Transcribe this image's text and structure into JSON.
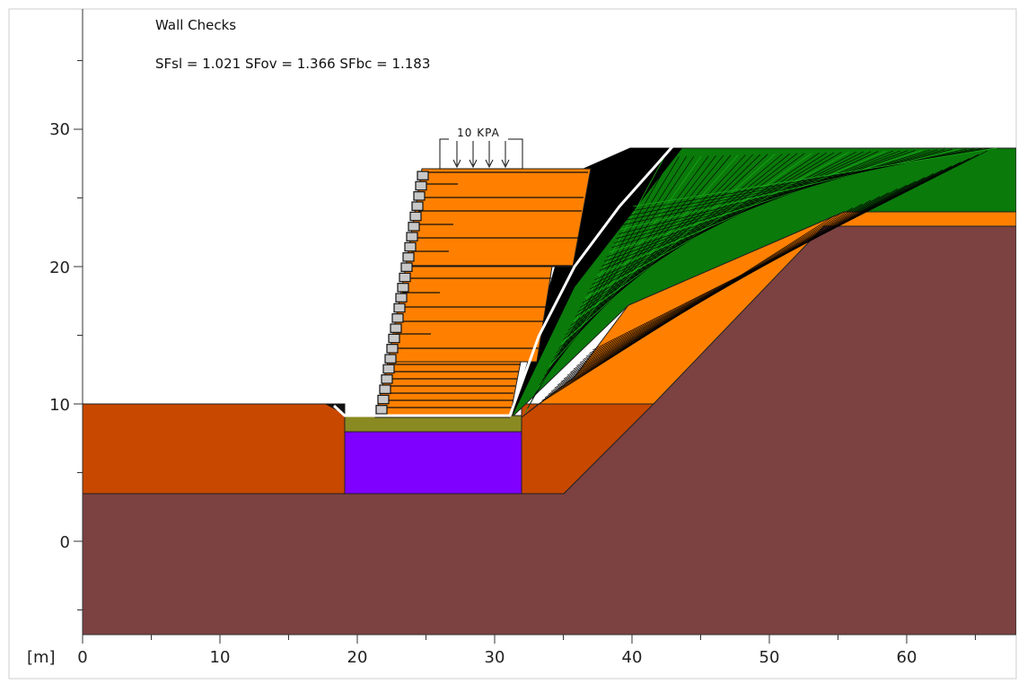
{
  "title": "Wall Checks",
  "safety_factors": "SFsl = 1.021 SFov = 1.366 SFbc = 1.183",
  "load_label": "10 KPA",
  "axis": {
    "unit_label": "[m]",
    "x_ticks": [
      "0",
      "10",
      "20",
      "30",
      "40",
      "50",
      "60"
    ],
    "y_ticks": [
      "30",
      "20",
      "10",
      "0"
    ]
  },
  "colors": {
    "bedrock": "#7c4141",
    "foundation_soil": "#c84800",
    "fill_orange": "#ff8000",
    "reinforced_fill": "#ff8000",
    "slope_vegetation": "#0a7a0a",
    "leveling_pad": "#8a8a22",
    "foundation_block": "#8000ff",
    "facing_blocks": "#c8c8c8",
    "slip_surface": "#ffffff",
    "slip_fan": "#000000"
  },
  "chart_data": {
    "type": "cross-section",
    "x_range": [
      0,
      68
    ],
    "y_range": [
      -7,
      39
    ],
    "surcharge_kpa": 10,
    "materials": [
      {
        "id": "bedrock",
        "polygon": [
          [
            0,
            -7
          ],
          [
            68,
            -7
          ],
          [
            68,
            23
          ],
          [
            56,
            23
          ],
          [
            35,
            3.5
          ],
          [
            0,
            3.5
          ]
        ]
      },
      {
        "id": "foundation_soil",
        "polygon": [
          [
            0,
            3.5
          ],
          [
            35,
            3.5
          ],
          [
            41.8,
            10
          ],
          [
            31.8,
            10
          ],
          [
            31.8,
            3.5
          ],
          [
            19,
            3.5
          ],
          [
            19,
            10
          ],
          [
            0,
            10
          ]
        ]
      },
      {
        "id": "fill_orange",
        "polygon": [
          [
            31.8,
            10
          ],
          [
            41.8,
            10
          ],
          [
            53.3,
            24
          ],
          [
            68,
            24
          ],
          [
            68,
            23
          ],
          [
            56,
            23
          ],
          [
            36,
            8
          ]
        ]
      },
      {
        "id": "slope_vegetation",
        "polygon": [
          [
            35,
            27
          ],
          [
            40,
            28.5
          ],
          [
            68,
            28.5
          ],
          [
            68,
            24
          ],
          [
            53.3,
            24
          ],
          [
            31,
            9
          ]
        ]
      },
      {
        "id": "leveling_pad",
        "polygon": [
          [
            19,
            8
          ],
          [
            32,
            8
          ],
          [
            32,
            9.2
          ],
          [
            19,
            9.2
          ]
        ]
      },
      {
        "id": "foundation_block",
        "polygon": [
          [
            19,
            3.5
          ],
          [
            32,
            3.5
          ],
          [
            32,
            8
          ],
          [
            19,
            8
          ]
        ]
      }
    ],
    "reinforcement_layers": [
      9.4,
      10.0,
      10.6,
      11.2,
      11.8,
      12.4,
      13.4,
      14.4,
      15.4,
      16.4,
      17.4,
      18.4,
      19.4,
      20.4,
      22.4,
      24.4,
      26.4
    ]
  }
}
